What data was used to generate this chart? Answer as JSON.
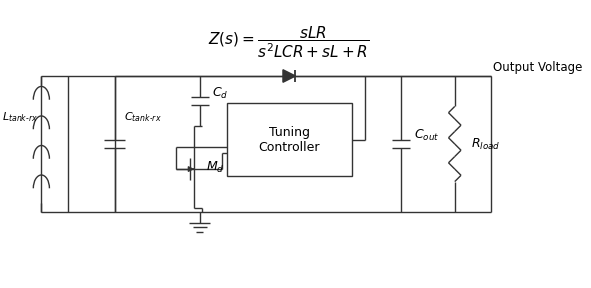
{
  "output_voltage_label": "Output Voltage",
  "tuning_controller_label": "Tuning\nController",
  "bg_color": "#ffffff",
  "line_color": "#333333",
  "fig_width": 5.91,
  "fig_height": 2.88,
  "formula_num": "sLR",
  "formula_den": "s^2LCR + sL + R"
}
